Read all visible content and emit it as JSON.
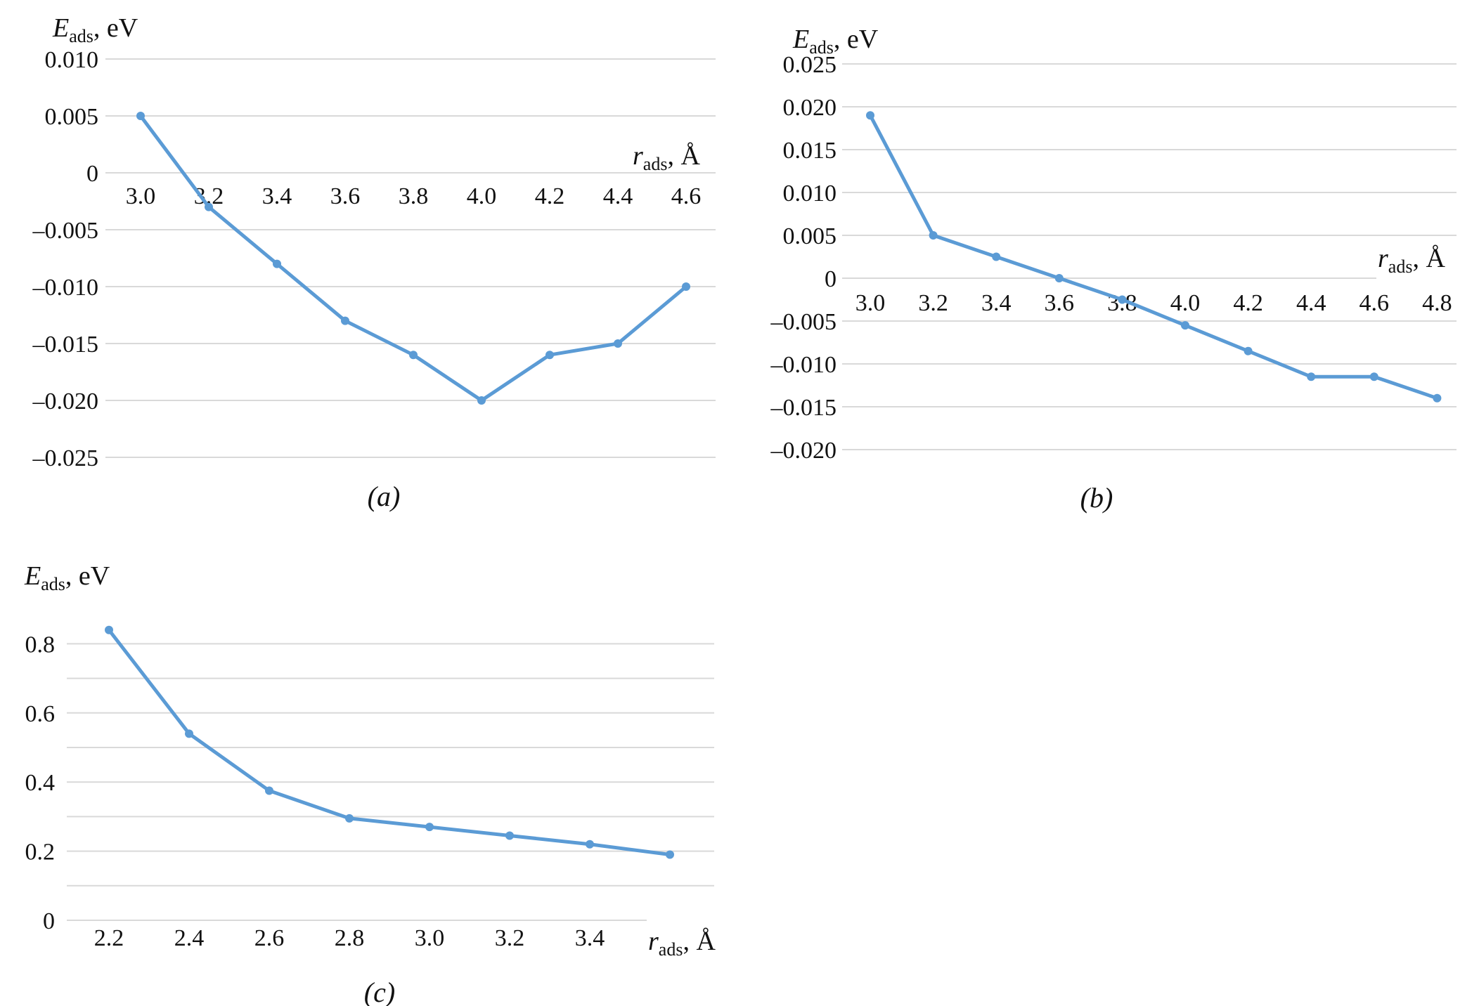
{
  "chart_data": [
    {
      "type": "line",
      "panel": "(a)",
      "ylabel": {
        "symbol": "E",
        "sub": "ads",
        "unit": ", eV"
      },
      "xlabel": {
        "symbol": "r",
        "sub": "ads",
        "unit": ", Å"
      },
      "x": [
        3.0,
        3.2,
        3.4,
        3.6,
        3.8,
        4.0,
        4.2,
        4.4,
        4.6
      ],
      "xtick_labels": [
        "3.0",
        "3.2",
        "3.4",
        "3.6",
        "3.8",
        "4.0",
        "4.2",
        "4.4",
        "4.6"
      ],
      "values": [
        0.005,
        -0.003,
        -0.008,
        -0.013,
        -0.016,
        -0.02,
        -0.016,
        -0.015,
        -0.01
      ],
      "yticks": [
        0.01,
        0.005,
        0,
        -0.005,
        -0.01,
        -0.015,
        -0.02,
        -0.025
      ],
      "ytick_labels": [
        "0.010",
        "0.005",
        "0",
        "–0.005",
        "–0.010",
        "–0.015",
        "–0.020",
        "–0.025"
      ],
      "ylim": [
        -0.025,
        0.01
      ],
      "grid": true
    },
    {
      "type": "line",
      "panel": "(b)",
      "ylabel": {
        "symbol": "E",
        "sub": "ads",
        "unit": ", eV"
      },
      "xlabel": {
        "symbol": "r",
        "sub": "ads",
        "unit": ", Å"
      },
      "x": [
        3.0,
        3.2,
        3.4,
        3.6,
        3.8,
        4.0,
        4.2,
        4.4,
        4.6,
        4.8
      ],
      "xtick_labels": [
        "3.0",
        "3.2",
        "3.4",
        "3.6",
        "3.8",
        "4.0",
        "4.2",
        "4.4",
        "4.6",
        "4.8"
      ],
      "values": [
        0.019,
        0.005,
        0.0025,
        0.0,
        -0.0025,
        -0.0055,
        -0.0085,
        -0.0115,
        -0.0115,
        -0.014
      ],
      "yticks": [
        0.025,
        0.02,
        0.015,
        0.01,
        0.005,
        0,
        -0.005,
        -0.01,
        -0.015,
        -0.02
      ],
      "ytick_labels": [
        "0.025",
        "0.020",
        "0.015",
        "0.010",
        "0.005",
        "0",
        "–0.005",
        "–0.010",
        "–0.015",
        "–0.020"
      ],
      "ylim": [
        -0.02,
        0.025
      ],
      "grid": true
    },
    {
      "type": "line",
      "panel": "(c)",
      "ylabel": {
        "symbol": "E",
        "sub": "ads",
        "unit": ", eV"
      },
      "xlabel": {
        "symbol": "r",
        "sub": "ads",
        "unit": ", Å"
      },
      "x": [
        2.2,
        2.4,
        2.6,
        2.8,
        3.0,
        3.2,
        3.4,
        3.6
      ],
      "xtick_labels": [
        "2.2",
        "2.4",
        "2.6",
        "2.8",
        "3.0",
        "3.2",
        "3.4"
      ],
      "values": [
        0.84,
        0.54,
        0.375,
        0.295,
        0.27,
        0.245,
        0.22,
        0.19
      ],
      "yticks": [
        0.8,
        0.6,
        0.4,
        0.2,
        0
      ],
      "ytick_labels": [
        "0.8",
        "0.6",
        "0.4",
        "0.2",
        "0"
      ],
      "ylim": [
        0,
        0.9
      ],
      "grid": true
    }
  ],
  "colors": {
    "series": "#5b9bd5",
    "grid": "#d9d9d9"
  }
}
